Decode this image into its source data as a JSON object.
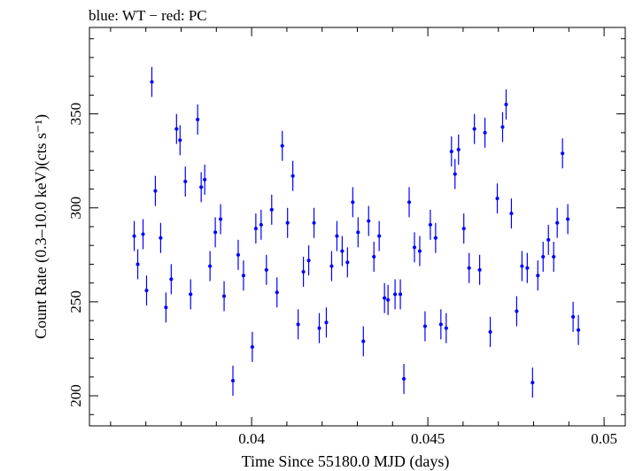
{
  "chart_data": {
    "type": "scatter",
    "title": "blue: WT − red: PC",
    "xlabel": "Time Since 55180.0 MJD (days)",
    "ylabel": "Count Rate (0.3–10.0 keV)(cts s⁻¹)",
    "xlim": [
      0.0354,
      0.0506
    ],
    "ylim": [
      184,
      396
    ],
    "xticks": [
      0.04,
      0.045,
      0.05
    ],
    "xtick_labels": [
      "0.04",
      "0.045",
      "0.05"
    ],
    "yticks": [
      200,
      250,
      300,
      350
    ],
    "ytick_labels": [
      "200",
      "250",
      "300",
      "350"
    ],
    "grid": false,
    "series": [
      {
        "color": "#0000ff",
        "x_err": 5e-05,
        "y_err": 8,
        "points": [
          [
            0.03667,
            285
          ],
          [
            0.03677,
            270
          ],
          [
            0.03692,
            286
          ],
          [
            0.03702,
            256
          ],
          [
            0.03717,
            367
          ],
          [
            0.03727,
            309
          ],
          [
            0.03742,
            284
          ],
          [
            0.03757,
            247
          ],
          [
            0.03772,
            262
          ],
          [
            0.03787,
            342
          ],
          [
            0.03797,
            336
          ],
          [
            0.03812,
            314
          ],
          [
            0.03827,
            254
          ],
          [
            0.03847,
            347
          ],
          [
            0.03857,
            311
          ],
          [
            0.03867,
            315
          ],
          [
            0.03882,
            269
          ],
          [
            0.03897,
            287
          ],
          [
            0.03912,
            294
          ],
          [
            0.03922,
            253
          ],
          [
            0.03947,
            208
          ],
          [
            0.03962,
            275
          ],
          [
            0.03977,
            264
          ],
          [
            0.04002,
            226
          ],
          [
            0.04012,
            289
          ],
          [
            0.04027,
            291
          ],
          [
            0.04042,
            267
          ],
          [
            0.04057,
            299
          ],
          [
            0.04072,
            255
          ],
          [
            0.04087,
            333
          ],
          [
            0.04102,
            292
          ],
          [
            0.04117,
            317
          ],
          [
            0.04132,
            238
          ],
          [
            0.04147,
            266
          ],
          [
            0.04162,
            272
          ],
          [
            0.04177,
            292
          ],
          [
            0.04192,
            236
          ],
          [
            0.04212,
            239
          ],
          [
            0.04227,
            269
          ],
          [
            0.04242,
            285
          ],
          [
            0.04257,
            277
          ],
          [
            0.04272,
            271
          ],
          [
            0.04287,
            303
          ],
          [
            0.04302,
            287
          ],
          [
            0.04317,
            229
          ],
          [
            0.04332,
            293
          ],
          [
            0.04347,
            274
          ],
          [
            0.04362,
            285
          ],
          [
            0.04377,
            252
          ],
          [
            0.04387,
            251
          ],
          [
            0.04407,
            254
          ],
          [
            0.04422,
            254
          ],
          [
            0.04432,
            209
          ],
          [
            0.04447,
            303
          ],
          [
            0.04462,
            279
          ],
          [
            0.04477,
            277
          ],
          [
            0.04492,
            237
          ],
          [
            0.04507,
            291
          ],
          [
            0.04522,
            284
          ],
          [
            0.04537,
            238
          ],
          [
            0.04552,
            236
          ],
          [
            0.04567,
            330
          ],
          [
            0.04577,
            318
          ],
          [
            0.04587,
            331
          ],
          [
            0.04602,
            289
          ],
          [
            0.04617,
            268
          ],
          [
            0.04632,
            342
          ],
          [
            0.04647,
            267
          ],
          [
            0.04662,
            340
          ],
          [
            0.04677,
            234
          ],
          [
            0.04697,
            305
          ],
          [
            0.04712,
            343
          ],
          [
            0.04722,
            355
          ],
          [
            0.04737,
            297
          ],
          [
            0.04752,
            245
          ],
          [
            0.04767,
            269
          ],
          [
            0.04782,
            268
          ],
          [
            0.04797,
            207
          ],
          [
            0.04812,
            264
          ],
          [
            0.04827,
            274
          ],
          [
            0.04842,
            283
          ],
          [
            0.04857,
            274
          ],
          [
            0.04867,
            292
          ],
          [
            0.04882,
            329
          ],
          [
            0.04897,
            294
          ],
          [
            0.04912,
            242
          ],
          [
            0.04927,
            235
          ]
        ]
      }
    ]
  }
}
